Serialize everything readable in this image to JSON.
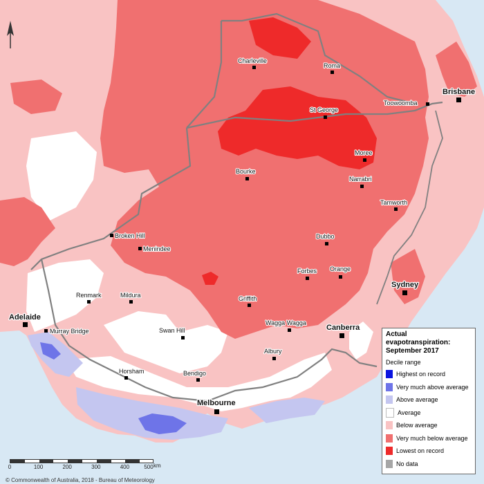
{
  "map": {
    "title": "Actual evapotranspiration:",
    "subtitle": "September 2017",
    "colors": {
      "sea": "#d8e8f4",
      "land_other": "#ffffff",
      "border": "#808080"
    }
  },
  "legend": {
    "range_label": "Decile range",
    "items": [
      {
        "label": "Highest on record",
        "color": "#0a14e0"
      },
      {
        "label": "Very much above average",
        "color": "#6e74e8"
      },
      {
        "label": "Above average",
        "color": "#c4c6f0"
      },
      {
        "label": "Average",
        "color": "#ffffff"
      },
      {
        "label": "Below average",
        "color": "#f9c3c3"
      },
      {
        "label": "Very much below average",
        "color": "#f07070"
      },
      {
        "label": "Lowest on record",
        "color": "#ee2a2a"
      },
      {
        "label": "No data",
        "color": "#a6a6a6"
      }
    ]
  },
  "places": [
    {
      "name": "Charleville",
      "type": "town"
    },
    {
      "name": "Roma",
      "type": "town"
    },
    {
      "name": "Brisbane",
      "type": "city"
    },
    {
      "name": "Toowoomba",
      "type": "town"
    },
    {
      "name": "St George",
      "type": "town"
    },
    {
      "name": "Moree",
      "type": "town"
    },
    {
      "name": "Bourke",
      "type": "town"
    },
    {
      "name": "Narrabri",
      "type": "town"
    },
    {
      "name": "Tamworth",
      "type": "town"
    },
    {
      "name": "Broken Hill",
      "type": "town"
    },
    {
      "name": "Menindee",
      "type": "town"
    },
    {
      "name": "Dubbo",
      "type": "town"
    },
    {
      "name": "Forbes",
      "type": "town"
    },
    {
      "name": "Orange",
      "type": "town"
    },
    {
      "name": "Sydney",
      "type": "city"
    },
    {
      "name": "Renmark",
      "type": "town"
    },
    {
      "name": "Mildura",
      "type": "town"
    },
    {
      "name": "Griffith",
      "type": "town"
    },
    {
      "name": "Adelaide",
      "type": "city"
    },
    {
      "name": "Murray Bridge",
      "type": "town"
    },
    {
      "name": "Swan Hill",
      "type": "town"
    },
    {
      "name": "Wagga Wagga",
      "type": "town"
    },
    {
      "name": "Canberra",
      "type": "city"
    },
    {
      "name": "Albury",
      "type": "town"
    },
    {
      "name": "Horsham",
      "type": "town"
    },
    {
      "name": "Bendigo",
      "type": "town"
    },
    {
      "name": "Melbourne",
      "type": "city"
    }
  ],
  "scale": {
    "ticks": [
      "0",
      "100",
      "200",
      "300",
      "400",
      "500"
    ],
    "unit": "km"
  },
  "copyright": "© Commonwealth of Australia, 2018 - Bureau of Meteorology",
  "north_arrow": {
    "icon": "north-arrow-icon"
  }
}
